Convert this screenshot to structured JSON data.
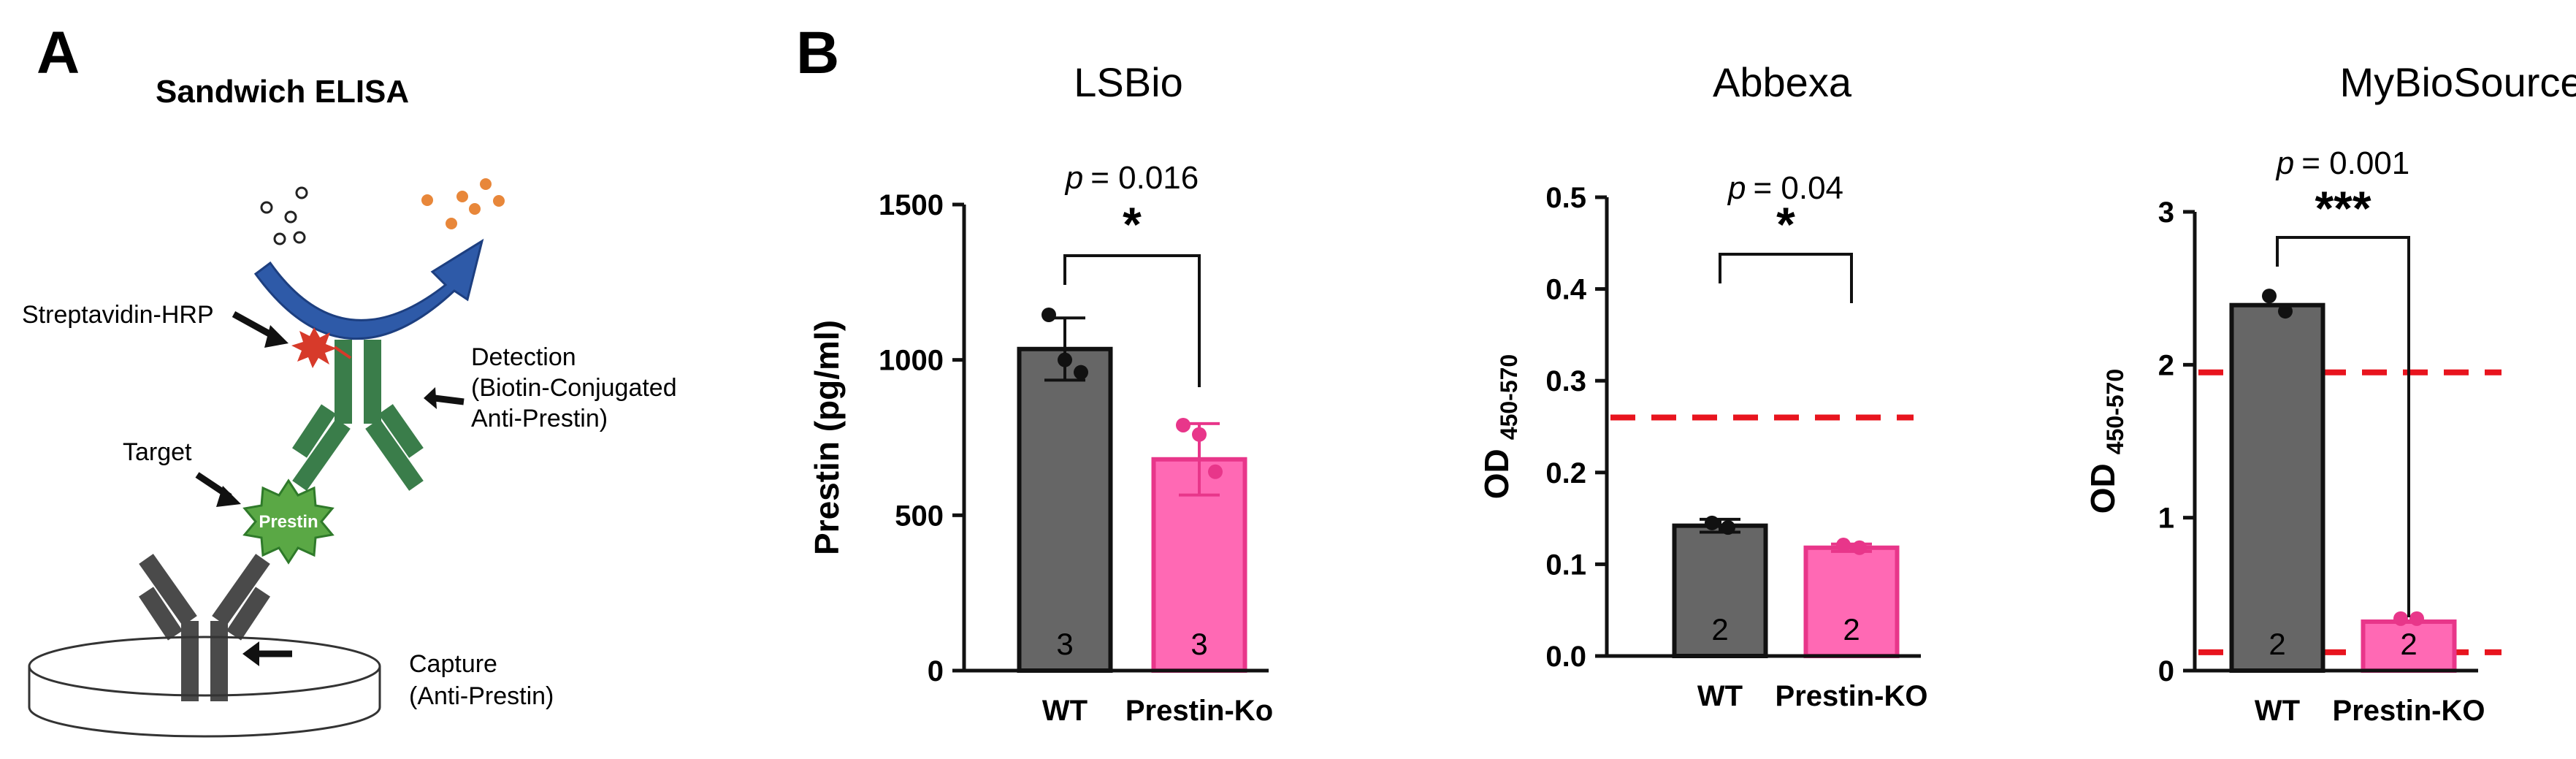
{
  "panel_a": {
    "label": "A",
    "title": "Sandwich ELISA",
    "streptavidin_label": "Streptavidin-HRP",
    "detection_lines": [
      "Detection",
      "(Biotin-Conjugated",
      "Anti-Prestin)"
    ],
    "target_label": "Target",
    "prestin_label": "Prestin",
    "capture_lines": [
      "Capture",
      "(Anti-Prestin)"
    ],
    "colors": {
      "antibody_detection": "#3a7d4a",
      "antibody_capture": "#4a4a4a",
      "target": "#5aa845",
      "hrp": "#d73a2a",
      "arrow": "#2e5aa8",
      "product": "#e8873a"
    }
  },
  "panel_b": {
    "label": "B"
  },
  "colors": {
    "wt": "#666666",
    "ko": "#ff69b4",
    "ko_edge": "#e8368a",
    "threshold": "#e8141e"
  },
  "chart_data": [
    {
      "type": "bar",
      "title": "LSBio",
      "ylabel": "Prestin (pg/ml)",
      "categories": [
        "WT",
        "Prestin-Ko"
      ],
      "values": [
        1035,
        680
      ],
      "error": [
        100,
        115
      ],
      "points": [
        [
          1145,
          1000,
          960
        ],
        [
          790,
          760,
          640
        ]
      ],
      "n_labels": [
        "3",
        "3"
      ],
      "ylim": [
        0,
        1500
      ],
      "yticks": [
        "0",
        "500",
        "1000",
        "1500"
      ],
      "p_text": "= 0.016",
      "p_italic": "p",
      "stars": "*",
      "threshold": null
    },
    {
      "type": "bar",
      "title": "Abbexa",
      "ylabel_main": "OD",
      "ylabel_sub": "450-570",
      "categories": [
        "WT",
        "Prestin-KO"
      ],
      "values": [
        0.142,
        0.118
      ],
      "error": [
        0.007,
        0.004
      ],
      "points": [
        [
          0.145,
          0.14
        ],
        [
          0.121,
          0.118
        ]
      ],
      "n_labels": [
        "2",
        "2"
      ],
      "ylim": [
        0,
        0.5
      ],
      "yticks": [
        "0.0",
        "0.1",
        "0.2",
        "0.3",
        "0.4",
        "0.5"
      ],
      "p_text": "= 0.04",
      "p_italic": "p",
      "stars": "*",
      "threshold": [
        0.26
      ]
    },
    {
      "type": "bar",
      "title": "MyBioSource",
      "ylabel_main": "OD",
      "ylabel_sub": "450-570",
      "categories": [
        "WT",
        "Prestin-KO"
      ],
      "values": [
        2.39,
        0.32
      ],
      "error": [
        0,
        0
      ],
      "points": [
        [
          2.45,
          2.35
        ],
        [
          0.34,
          0.34
        ]
      ],
      "n_labels": [
        "2",
        "2"
      ],
      "ylim": [
        0,
        3
      ],
      "yticks": [
        "0",
        "1",
        "2",
        "3"
      ],
      "p_text": "= 0.001",
      "p_italic": "p",
      "stars": "***",
      "threshold": [
        1.95,
        0.12
      ]
    }
  ]
}
